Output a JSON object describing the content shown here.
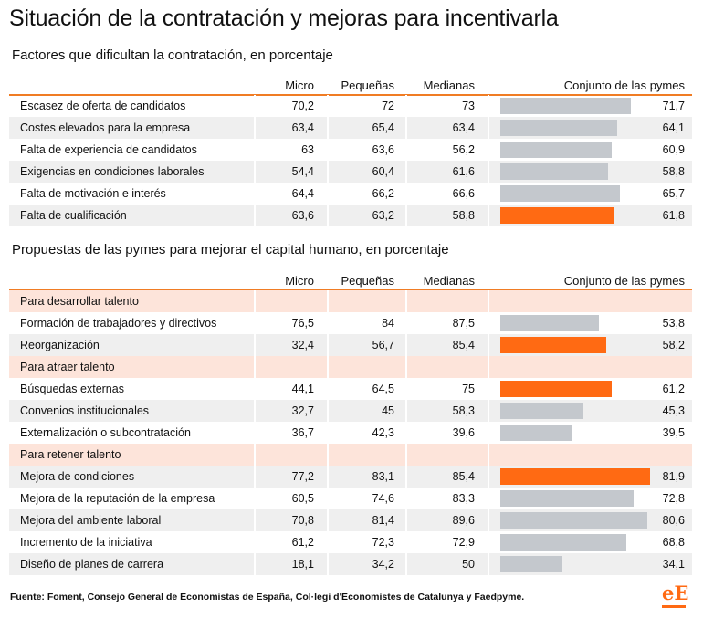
{
  "title": "Situación de la contratación y mejoras para incentivarla",
  "source": "Fuente: Foment, Consejo General de Economistas de España, Col·legi d'Economistes de Catalunya y Faedpyme.",
  "logo": "eE",
  "colors": {
    "accent": "#ff6a13",
    "bar": "#c4c8cd",
    "category_bg": "#fde4da",
    "row_shade": "#efefef",
    "rule": "#f07c24"
  },
  "columns": {
    "micro": "Micro",
    "pequenas": "Pequeñas",
    "medianas": "Medianas",
    "conjunto": "Conjunto de las pymes"
  },
  "chart_data": [
    {
      "type": "table",
      "title": "Factores que dificultan la contratación, en porcentaje",
      "columns": [
        "Micro",
        "Pequeñas",
        "Medianas",
        "Conjunto de las pymes"
      ],
      "bar_scale": [
        0,
        100
      ],
      "rows": [
        {
          "label": "Escasez de oferta de candidatos",
          "values": [
            "70,2",
            "72",
            "73",
            "71,7"
          ],
          "bar_value": 71.7,
          "highlight": false
        },
        {
          "label": "Costes elevados para la empresa",
          "values": [
            "63,4",
            "65,4",
            "63,4",
            "64,1"
          ],
          "bar_value": 64.1,
          "highlight": false
        },
        {
          "label": "Falta de experiencia de candidatos",
          "values": [
            "63",
            "63,6",
            "56,2",
            "60,9"
          ],
          "bar_value": 60.9,
          "highlight": false
        },
        {
          "label": "Exigencias en condiciones laborales",
          "values": [
            "54,4",
            "60,4",
            "61,6",
            "58,8"
          ],
          "bar_value": 58.8,
          "highlight": false
        },
        {
          "label": "Falta de motivación e interés",
          "values": [
            "64,4",
            "66,2",
            "66,6",
            "65,7"
          ],
          "bar_value": 65.7,
          "highlight": false
        },
        {
          "label": "Falta de cualificación",
          "values": [
            "63,6",
            "63,2",
            "58,8",
            "61,8"
          ],
          "bar_value": 61.8,
          "highlight": true
        }
      ]
    },
    {
      "type": "table",
      "title": "Propuestas de las pymes para mejorar el capital humano, en porcentaje",
      "columns": [
        "Micro",
        "Pequeñas",
        "Medianas",
        "Conjunto de las pymes"
      ],
      "bar_scale": [
        0,
        100
      ],
      "rows": [
        {
          "category": "Para desarrollar talento"
        },
        {
          "label": "Formación de trabajadores y directivos",
          "values": [
            "76,5",
            "84",
            "87,5",
            "53,8"
          ],
          "bar_value": 53.8,
          "highlight": false
        },
        {
          "label": "Reorganización",
          "values": [
            "32,4",
            "56,7",
            "85,4",
            "58,2"
          ],
          "bar_value": 58.2,
          "highlight": true
        },
        {
          "category": "Para atraer talento"
        },
        {
          "label": "Búsquedas externas",
          "values": [
            "44,1",
            "64,5",
            "75",
            "61,2"
          ],
          "bar_value": 61.2,
          "highlight": true
        },
        {
          "label": "Convenios institucionales",
          "values": [
            "32,7",
            "45",
            "58,3",
            "45,3"
          ],
          "bar_value": 45.3,
          "highlight": false
        },
        {
          "label": "Externalización o subcontratación",
          "values": [
            "36,7",
            "42,3",
            "39,6",
            "39,5"
          ],
          "bar_value": 39.5,
          "highlight": false
        },
        {
          "category": "Para retener talento"
        },
        {
          "label": "Mejora de condiciones",
          "values": [
            "77,2",
            "83,1",
            "85,4",
            "81,9"
          ],
          "bar_value": 81.9,
          "highlight": true
        },
        {
          "label": "Mejora de la reputación de la empresa",
          "values": [
            "60,5",
            "74,6",
            "83,3",
            "72,8"
          ],
          "bar_value": 72.8,
          "highlight": false
        },
        {
          "label": "Mejora del ambiente laboral",
          "values": [
            "70,8",
            "81,4",
            "89,6",
            "80,6"
          ],
          "bar_value": 80.6,
          "highlight": false
        },
        {
          "label": "Incremento de la iniciativa",
          "values": [
            "61,2",
            "72,3",
            "72,9",
            "68,8"
          ],
          "bar_value": 68.8,
          "highlight": false
        },
        {
          "label": "Diseño de planes de carrera",
          "values": [
            "18,1",
            "34,2",
            "50",
            "34,1"
          ],
          "bar_value": 34.1,
          "highlight": false
        }
      ]
    }
  ]
}
